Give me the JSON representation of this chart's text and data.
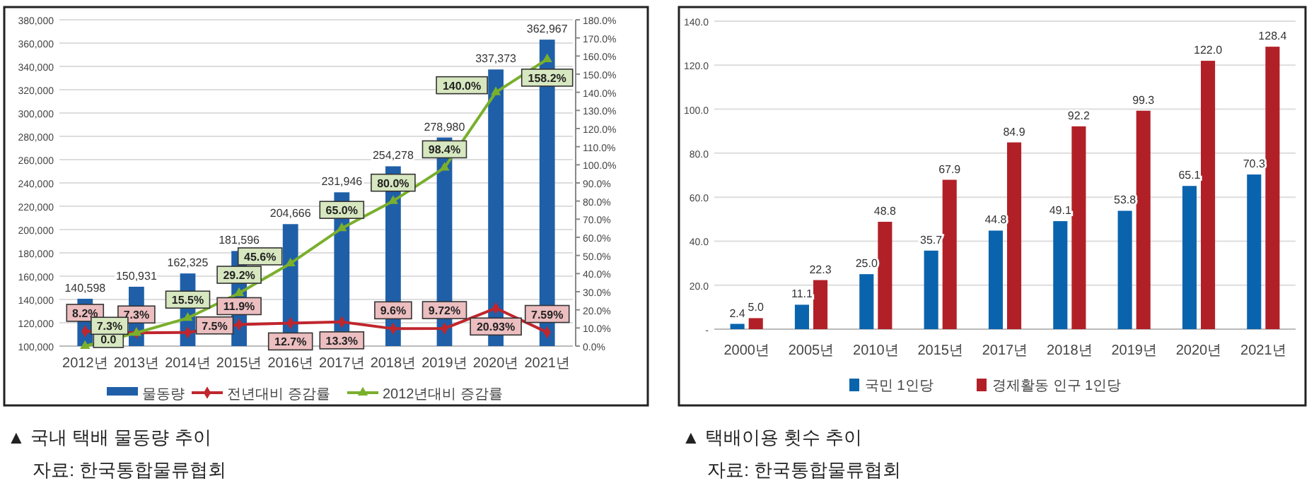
{
  "chart_data": [
    {
      "type": "bar",
      "title": "▲ 국내 택배 물동량 추이",
      "annotations": [
        "자료: 한국통합물류협회"
      ],
      "categories": [
        "2012년",
        "2013년",
        "2014년",
        "2015년",
        "2016년",
        "2017년",
        "2018년",
        "2019년",
        "2020년",
        "2021년"
      ],
      "series": [
        {
          "name": "물동량",
          "color": "#1f5fa8",
          "values": [
            140598,
            150931,
            162325,
            181596,
            204666,
            231946,
            254278,
            278980,
            337373,
            362967
          ],
          "value_labels": [
            "140,598",
            "150,931",
            "162,325",
            "181,596",
            "204,666",
            "231,946",
            "254,278",
            "278,980",
            "337,373",
            "362,967"
          ]
        },
        {
          "name": "전년대비 증감률",
          "type": "line",
          "axis": "y2",
          "marker": "diamond",
          "color": "#c0262d",
          "values": [
            8.2,
            7.3,
            7.5,
            11.9,
            12.7,
            13.3,
            9.6,
            9.72,
            20.93,
            7.59
          ],
          "value_labels": [
            "8.2%",
            "7.3%",
            "7.5%",
            "11.9%",
            "12.7%",
            "13.3%",
            "9.6%",
            "9.72%",
            "20.93%",
            "7.59%"
          ]
        },
        {
          "name": "2012년대비 증감률",
          "type": "line",
          "axis": "y2",
          "marker": "triangle",
          "color": "#7aaf2c",
          "values": [
            0.0,
            7.3,
            15.5,
            29.2,
            45.6,
            65.0,
            80.0,
            98.4,
            140.0,
            158.2
          ],
          "value_labels": [
            "0.0",
            "7.3%",
            "15.5%",
            "29.2%",
            "45.6%",
            "65.0%",
            "80.0%",
            "98.4%",
            "140.0%",
            "158.2%"
          ]
        }
      ],
      "ylim": [
        100000,
        380000
      ],
      "yticks": [
        {
          "value": 100000,
          "label": "100,000"
        },
        {
          "value": 120000,
          "label": "120,000"
        },
        {
          "value": 140000,
          "label": "140,000"
        },
        {
          "value": 160000,
          "label": "160,000"
        },
        {
          "value": 180000,
          "label": "180,000"
        },
        {
          "value": 200000,
          "label": "200,000"
        },
        {
          "value": 220000,
          "label": "220,000"
        },
        {
          "value": 240000,
          "label": "240,000"
        },
        {
          "value": 260000,
          "label": "260,000"
        },
        {
          "value": 280000,
          "label": "280,000"
        },
        {
          "value": 300000,
          "label": "300,000"
        },
        {
          "value": 320000,
          "label": "320,000"
        },
        {
          "value": 340000,
          "label": "340,000"
        },
        {
          "value": 360000,
          "label": "360,000"
        },
        {
          "value": 380000,
          "label": "380,000"
        }
      ],
      "y2lim": [
        0,
        180
      ],
      "y2ticks": [
        {
          "value": 0,
          "label": "0.0%"
        },
        {
          "value": 10,
          "label": "10.0%"
        },
        {
          "value": 20,
          "label": "20.0%"
        },
        {
          "value": 30,
          "label": "30.0%"
        },
        {
          "value": 40,
          "label": "40.0%"
        },
        {
          "value": 50,
          "label": "50.0%"
        },
        {
          "value": 60,
          "label": "60.0%"
        },
        {
          "value": 70,
          "label": "70.0%"
        },
        {
          "value": 80,
          "label": "80.0%"
        },
        {
          "value": 90,
          "label": "90.0%"
        },
        {
          "value": 100,
          "label": "100.0%"
        },
        {
          "value": 110,
          "label": "110.0%"
        },
        {
          "value": 120,
          "label": "120.0%"
        },
        {
          "value": 130,
          "label": "130.0%"
        },
        {
          "value": 140,
          "label": "140.0%"
        },
        {
          "value": 150,
          "label": "150.0%"
        },
        {
          "value": 160,
          "label": "160.0%"
        },
        {
          "value": 170,
          "label": "170.0%"
        },
        {
          "value": 180,
          "label": "180.0%"
        }
      ],
      "grid": "y",
      "legend": "bottom"
    },
    {
      "type": "bar",
      "title": "▲ 택배이용 횟수 추이",
      "annotations": [
        "자료: 한국통합물류협회"
      ],
      "categories": [
        "2000년",
        "2005년",
        "2010년",
        "2015년",
        "2017년",
        "2018년",
        "2019년",
        "2020년",
        "2021년"
      ],
      "series": [
        {
          "name": "국민 1인당",
          "color": "#0a64ad",
          "values": [
            2.4,
            11.1,
            25.0,
            35.7,
            44.8,
            49.1,
            53.8,
            65.1,
            70.3
          ],
          "value_labels": [
            "2.4",
            "11.1",
            "25.0",
            "35.7",
            "44.8",
            "49.1",
            "53.8",
            "65.1",
            "70.3"
          ]
        },
        {
          "name": "경제활동 인구 1인당",
          "color": "#b22027",
          "values": [
            5.0,
            22.3,
            48.8,
            67.9,
            84.9,
            92.2,
            99.3,
            122.0,
            128.4
          ],
          "value_labels": [
            "5.0",
            "22.3",
            "48.8",
            "67.9",
            "84.9",
            "92.2",
            "99.3",
            "122.0",
            "128.4"
          ]
        }
      ],
      "ylim": [
        0,
        140
      ],
      "yticks": [
        {
          "value": 0,
          "label": "-"
        },
        {
          "value": 20,
          "label": "20.0"
        },
        {
          "value": 40,
          "label": "40.0"
        },
        {
          "value": 60,
          "label": "60.0"
        },
        {
          "value": 80,
          "label": "80.0"
        },
        {
          "value": 100,
          "label": "100.0"
        },
        {
          "value": 120,
          "label": "120.0"
        },
        {
          "value": 140,
          "label": "140.0"
        }
      ],
      "grid": "y",
      "legend": "bottom"
    }
  ]
}
